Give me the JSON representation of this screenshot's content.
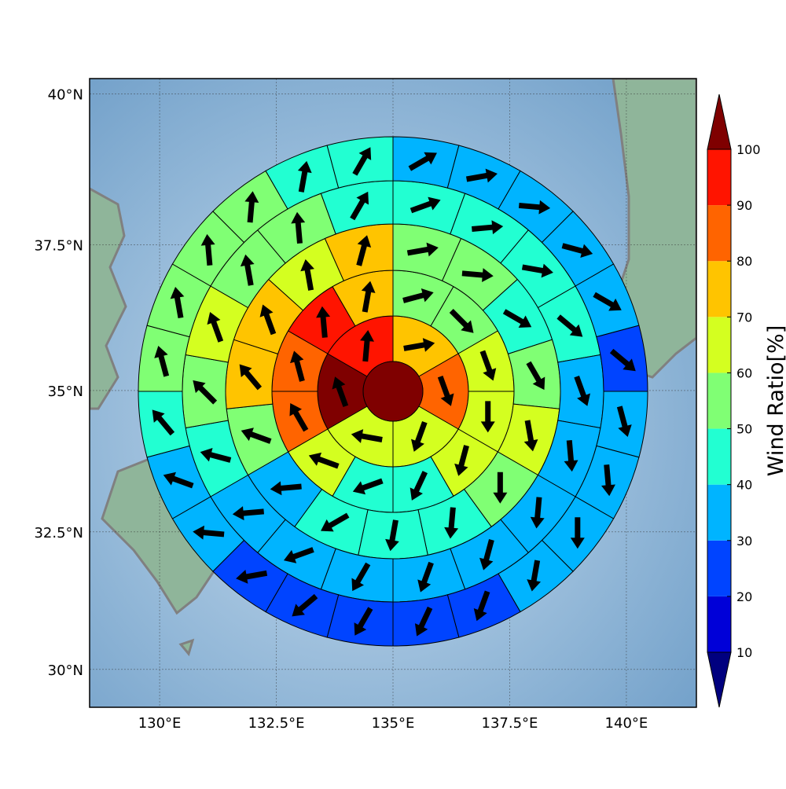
{
  "chart_data": {
    "type": "polar-grid-map",
    "xlim": [
      128.5,
      141.5
    ],
    "ylim": [
      29.3,
      40.25
    ],
    "xticks": [
      {
        "value": 130,
        "label": "130°E"
      },
      {
        "value": 132.5,
        "label": "132.5°E"
      },
      {
        "value": 135,
        "label": "135°E"
      },
      {
        "value": 137.5,
        "label": "137.5°E"
      },
      {
        "value": 140,
        "label": "140°E"
      }
    ],
    "yticks": [
      {
        "value": 30,
        "label": "30°N"
      },
      {
        "value": 32.5,
        "label": "32.5°N"
      },
      {
        "value": 35,
        "label": "35°N"
      },
      {
        "value": 37.5,
        "label": "37.5°N"
      },
      {
        "value": 40,
        "label": "40°N"
      }
    ],
    "grid": true,
    "center_value": 105,
    "rings": [
      {
        "values": [
          75,
          85,
          65,
          65,
          105,
          95
        ],
        "directions": [
          80,
          160,
          200,
          280,
          340,
          5
        ]
      },
      {
        "values": [
          55,
          55,
          65,
          65,
          65,
          45,
          45,
          65,
          85,
          85,
          95,
          75
        ],
        "directions": [
          75,
          135,
          160,
          180,
          195,
          205,
          250,
          290,
          330,
          345,
          355,
          10
        ]
      },
      {
        "values": [
          55,
          55,
          45,
          55,
          65,
          55,
          45,
          45,
          45,
          35,
          55,
          75,
          75,
          65,
          75
        ],
        "directions": [
          80,
          95,
          120,
          150,
          170,
          180,
          185,
          190,
          240,
          265,
          290,
          320,
          340,
          350,
          15
        ]
      },
      {
        "values": [
          45,
          45,
          45,
          45,
          35,
          35,
          35,
          35,
          35,
          35,
          35,
          35,
          45,
          55,
          65,
          55,
          55,
          45
        ],
        "directions": [
          70,
          85,
          100,
          130,
          160,
          175,
          185,
          195,
          200,
          210,
          250,
          265,
          285,
          315,
          340,
          350,
          355,
          30
        ]
      },
      {
        "values": [
          35,
          35,
          35,
          35,
          35,
          25,
          35,
          35,
          35,
          35,
          25,
          25,
          25,
          25,
          25,
          35,
          35,
          45,
          55,
          55,
          55,
          55,
          45,
          45
        ],
        "directions": [
          60,
          80,
          95,
          105,
          120,
          130,
          165,
          175,
          180,
          190,
          200,
          205,
          210,
          230,
          260,
          275,
          290,
          320,
          345,
          350,
          355,
          5,
          10,
          30
        ]
      }
    ],
    "colorbar": {
      "label": "Wind Ratio[%]",
      "levels": [
        10,
        20,
        30,
        40,
        50,
        60,
        70,
        80,
        90,
        100
      ],
      "colors": [
        "#0000d8",
        "#0044ff",
        "#00b4ff",
        "#22ffd2",
        "#80ff74",
        "#d4ff20",
        "#ffc400",
        "#ff6400",
        "#ff1400"
      ],
      "under_color": "#00007f",
      "over_color": "#7f0000"
    }
  }
}
